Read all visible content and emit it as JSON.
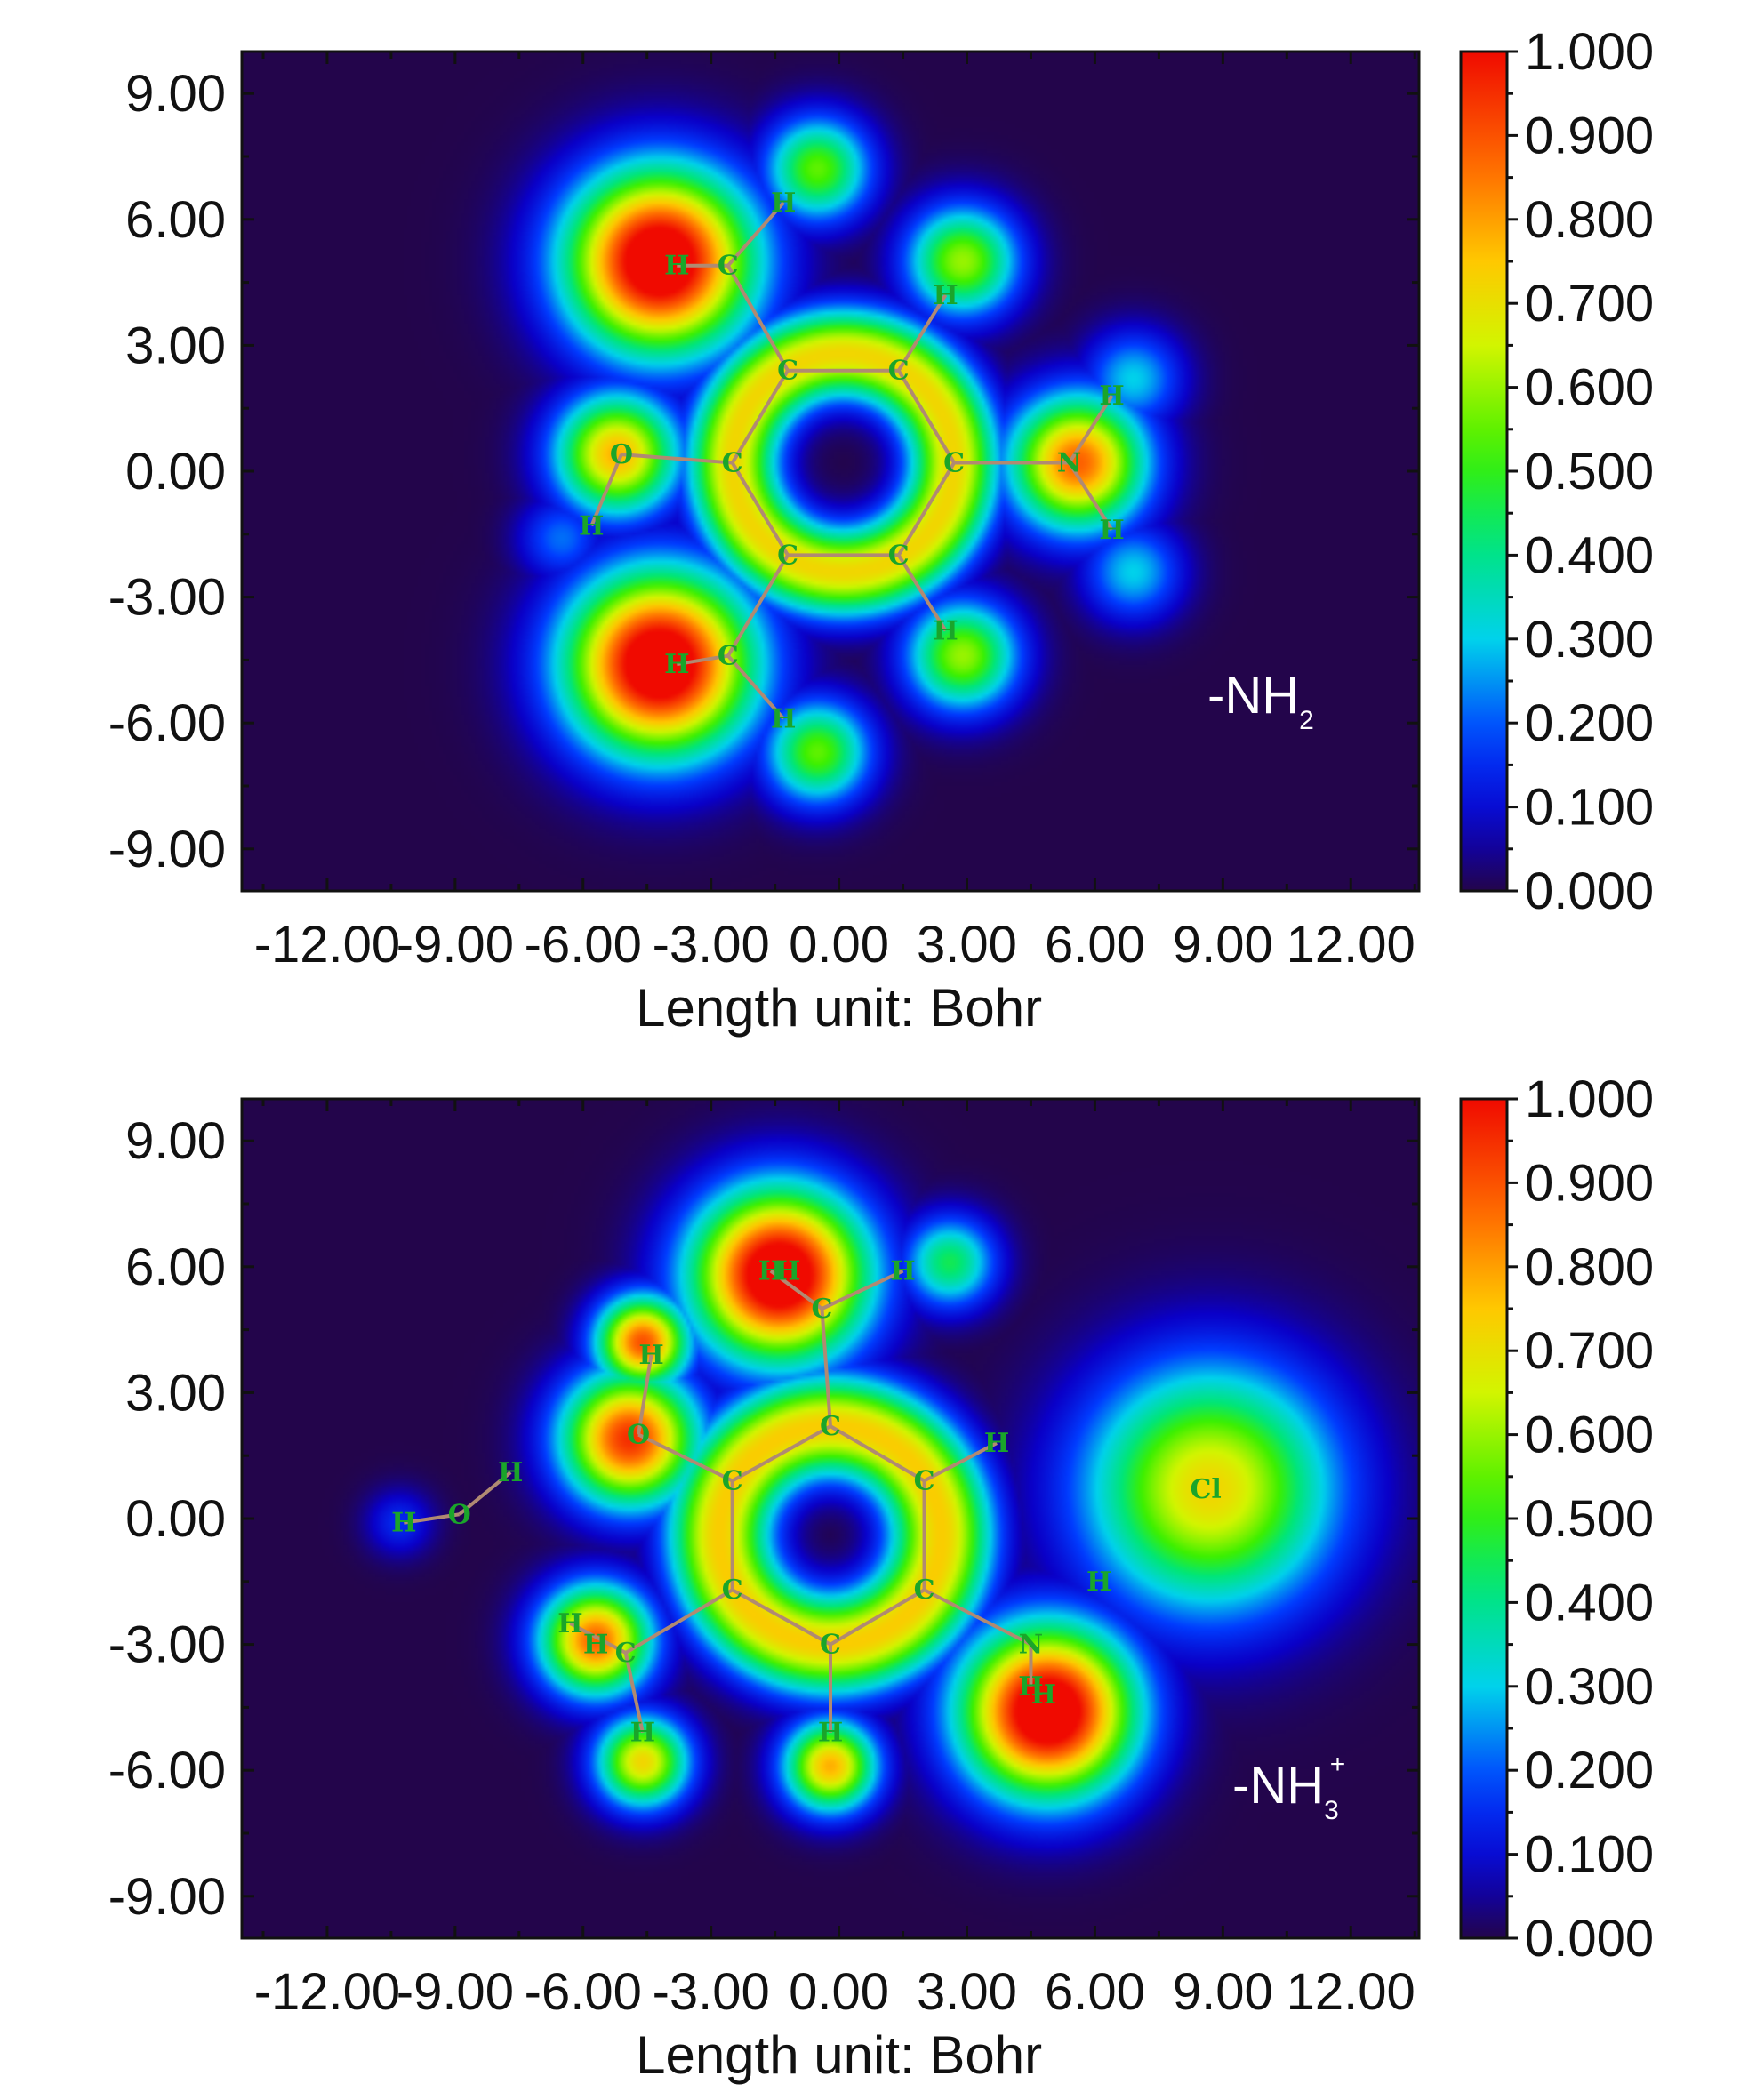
{
  "chart_data": [
    {
      "type": "heatmap",
      "annotation": {
        "text": "-NH",
        "sub": "2",
        "sup": ""
      },
      "xlabel": "Length unit: Bohr",
      "xlim": [
        -14,
        13.6
      ],
      "ylim": [
        -10,
        10
      ],
      "x_ticks": [
        -12,
        -9,
        -6,
        -3,
        0,
        3,
        6,
        9,
        12
      ],
      "x_tick_labels": [
        "-12.00",
        "-9.00",
        "-6.00",
        "-3.00",
        "0.00",
        "3.00",
        "6.00",
        "9.00",
        "12.00"
      ],
      "y_ticks": [
        9,
        6,
        3,
        0,
        -3,
        -6,
        -9
      ],
      "y_tick_labels": [
        "9.00",
        "6.00",
        "3.00",
        "0.00",
        "-3.00",
        "-6.00",
        "-9.00"
      ],
      "colorbar": {
        "min": 0,
        "max": 1,
        "ticks": [
          "1.000",
          "0.900",
          "0.800",
          "0.700",
          "0.600",
          "0.500",
          "0.400",
          "0.300",
          "0.200",
          "0.100",
          "0.000"
        ]
      },
      "atoms": [
        {
          "el": "C",
          "x": -1.2,
          "y": 2.4
        },
        {
          "el": "C",
          "x": 1.4,
          "y": 2.4
        },
        {
          "el": "C",
          "x": 2.7,
          "y": 0.2
        },
        {
          "el": "C",
          "x": 1.4,
          "y": -2.0
        },
        {
          "el": "C",
          "x": -1.2,
          "y": -2.0
        },
        {
          "el": "C",
          "x": -2.5,
          "y": 0.2
        },
        {
          "el": "C",
          "x": -2.6,
          "y": 4.9
        },
        {
          "el": "C",
          "x": -2.6,
          "y": -4.4
        },
        {
          "el": "H",
          "x": -3.8,
          "y": 4.9
        },
        {
          "el": "H",
          "x": -1.3,
          "y": 6.4
        },
        {
          "el": "H",
          "x": -3.8,
          "y": -4.6
        },
        {
          "el": "H",
          "x": -1.3,
          "y": -5.9
        },
        {
          "el": "H",
          "x": 2.5,
          "y": 4.2
        },
        {
          "el": "H",
          "x": 2.5,
          "y": -3.8
        },
        {
          "el": "O",
          "x": -5.1,
          "y": 0.4
        },
        {
          "el": "H",
          "x": -5.8,
          "y": -1.3
        },
        {
          "el": "N",
          "x": 5.4,
          "y": 0.2
        },
        {
          "el": "H",
          "x": 6.4,
          "y": 1.8
        },
        {
          "el": "H",
          "x": 6.4,
          "y": -1.4
        }
      ],
      "bonds": [
        [
          0,
          1
        ],
        [
          1,
          2
        ],
        [
          2,
          3
        ],
        [
          3,
          4
        ],
        [
          4,
          5
        ],
        [
          5,
          0
        ],
        [
          0,
          6
        ],
        [
          4,
          7
        ],
        [
          6,
          8
        ],
        [
          6,
          9
        ],
        [
          7,
          10
        ],
        [
          7,
          11
        ],
        [
          1,
          12
        ],
        [
          3,
          13
        ],
        [
          5,
          14
        ],
        [
          14,
          15
        ],
        [
          2,
          16
        ],
        [
          16,
          17
        ],
        [
          16,
          18
        ]
      ],
      "density_peaks": [
        {
          "x": -4.2,
          "y": 5.0,
          "a": 1.15,
          "s": 1.5
        },
        {
          "x": -4.2,
          "y": -4.6,
          "a": 1.15,
          "s": 1.5
        },
        {
          "x": -5.2,
          "y": 0.4,
          "a": 0.78,
          "s": 1.0
        },
        {
          "x": 5.6,
          "y": 0.2,
          "a": 0.88,
          "s": 1.1
        },
        {
          "x": -0.5,
          "y": 7.2,
          "a": 0.55,
          "s": 0.85
        },
        {
          "x": -0.5,
          "y": -6.7,
          "a": 0.55,
          "s": 0.85
        },
        {
          "x": 2.9,
          "y": 5.0,
          "a": 0.6,
          "s": 0.9
        },
        {
          "x": 2.9,
          "y": -4.4,
          "a": 0.6,
          "s": 0.9
        },
        {
          "x": 6.9,
          "y": 2.2,
          "a": 0.3,
          "s": 0.8
        },
        {
          "x": 6.9,
          "y": -2.4,
          "a": 0.3,
          "s": 0.8
        },
        {
          "x": -6.5,
          "y": -1.6,
          "a": 0.22,
          "s": 0.7
        }
      ]
    },
    {
      "type": "heatmap",
      "annotation": {
        "text": "-NH",
        "sub": "3",
        "sup": "+"
      },
      "xlabel": "Length unit: Bohr",
      "xlim": [
        -14,
        13.6
      ],
      "ylim": [
        -10,
        10
      ],
      "x_ticks": [
        -12,
        -9,
        -6,
        -3,
        0,
        3,
        6,
        9,
        12
      ],
      "x_tick_labels": [
        "-12.00",
        "-9.00",
        "-6.00",
        "-3.00",
        "0.00",
        "3.00",
        "6.00",
        "9.00",
        "12.00"
      ],
      "y_ticks": [
        9,
        6,
        3,
        0,
        -3,
        -6,
        -9
      ],
      "y_tick_labels": [
        "9.00",
        "6.00",
        "3.00",
        "0.00",
        "-3.00",
        "-6.00",
        "-9.00"
      ],
      "colorbar": {
        "min": 0,
        "max": 1,
        "ticks": [
          "1.000",
          "0.900",
          "0.800",
          "0.700",
          "0.600",
          "0.500",
          "0.400",
          "0.300",
          "0.200",
          "0.100",
          "0.000"
        ]
      },
      "atoms": [
        {
          "el": "C",
          "x": -0.2,
          "y": 2.2
        },
        {
          "el": "C",
          "x": 2.0,
          "y": 0.9
        },
        {
          "el": "C",
          "x": 2.0,
          "y": -1.7
        },
        {
          "el": "C",
          "x": -0.2,
          "y": -3.0
        },
        {
          "el": "C",
          "x": -2.5,
          "y": -1.7
        },
        {
          "el": "C",
          "x": -2.5,
          "y": 0.9
        },
        {
          "el": "C",
          "x": -0.4,
          "y": 5.0
        },
        {
          "el": "H",
          "x": -1.6,
          "y": 5.9
        },
        {
          "el": "H",
          "x": -1.2,
          "y": 5.9
        },
        {
          "el": "H",
          "x": 1.5,
          "y": 5.9
        },
        {
          "el": "O",
          "x": -4.7,
          "y": 2.0
        },
        {
          "el": "H",
          "x": -4.4,
          "y": 3.9
        },
        {
          "el": "H",
          "x": 3.7,
          "y": 1.8
        },
        {
          "el": "C",
          "x": -5.0,
          "y": -3.2
        },
        {
          "el": "H",
          "x": -6.3,
          "y": -2.5
        },
        {
          "el": "H",
          "x": -5.7,
          "y": -3.0
        },
        {
          "el": "H",
          "x": -4.6,
          "y": -5.1
        },
        {
          "el": "H",
          "x": -0.2,
          "y": -5.1
        },
        {
          "el": "N",
          "x": 4.5,
          "y": -3.0
        },
        {
          "el": "H",
          "x": 4.5,
          "y": -4.0
        },
        {
          "el": "H",
          "x": 4.8,
          "y": -4.2
        },
        {
          "el": "H",
          "x": 6.1,
          "y": -1.5
        },
        {
          "el": "Cl",
          "x": 8.6,
          "y": 0.7
        },
        {
          "el": "O",
          "x": -8.9,
          "y": 0.1
        },
        {
          "el": "H",
          "x": -10.2,
          "y": -0.1
        },
        {
          "el": "H",
          "x": -7.7,
          "y": 1.1
        }
      ],
      "bonds": [
        [
          0,
          1
        ],
        [
          1,
          2
        ],
        [
          2,
          3
        ],
        [
          3,
          4
        ],
        [
          4,
          5
        ],
        [
          5,
          0
        ],
        [
          0,
          6
        ],
        [
          6,
          7
        ],
        [
          6,
          9
        ],
        [
          5,
          10
        ],
        [
          10,
          11
        ],
        [
          1,
          12
        ],
        [
          4,
          13
        ],
        [
          13,
          14
        ],
        [
          13,
          16
        ],
        [
          3,
          17
        ],
        [
          2,
          18
        ],
        [
          18,
          19
        ],
        [
          23,
          24
        ],
        [
          23,
          25
        ]
      ],
      "density_peaks": [
        {
          "x": -1.4,
          "y": 5.8,
          "a": 1.15,
          "s": 1.4
        },
        {
          "x": 4.9,
          "y": -4.6,
          "a": 1.15,
          "s": 1.4
        },
        {
          "x": -4.9,
          "y": 1.9,
          "a": 0.95,
          "s": 1.1
        },
        {
          "x": -4.6,
          "y": 4.2,
          "a": 0.9,
          "s": 0.75
        },
        {
          "x": -5.7,
          "y": -2.9,
          "a": 0.88,
          "s": 0.9
        },
        {
          "x": -4.6,
          "y": -5.8,
          "a": 0.72,
          "s": 0.75
        },
        {
          "x": -0.2,
          "y": -5.9,
          "a": 0.78,
          "s": 0.75
        },
        {
          "x": 8.7,
          "y": 0.7,
          "a": 0.72,
          "s": 2.0
        },
        {
          "x": 2.6,
          "y": 6.1,
          "a": 0.45,
          "s": 0.75
        },
        {
          "x": -10.3,
          "y": -0.1,
          "a": 0.15,
          "s": 0.55
        }
      ]
    }
  ]
}
